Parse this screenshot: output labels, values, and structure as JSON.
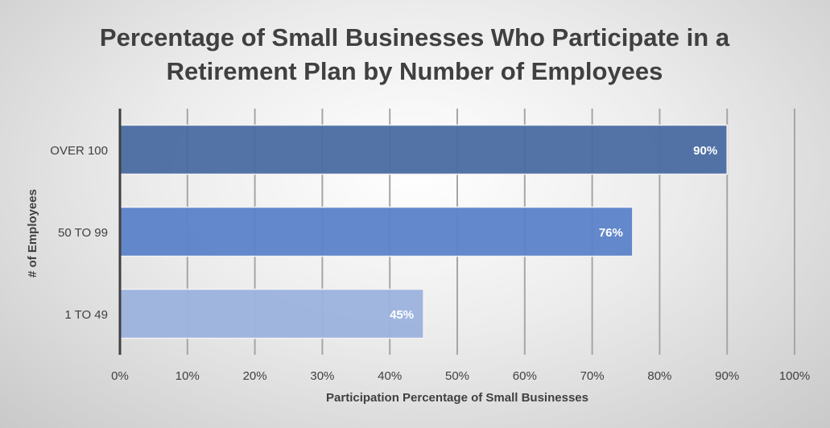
{
  "chart_data": {
    "type": "bar",
    "orientation": "horizontal",
    "title": "Percentage of Small Businesses Who Participate in a Retirement Plan by Number of Employees",
    "title_lines": [
      "Percentage of Small Businesses Who Participate in a",
      "Retirement Plan by Number of Employees"
    ],
    "xlabel": "Participation Percentage of Small Businesses",
    "ylabel": "# of Employees",
    "categories": [
      "OVER 100",
      "50 TO 99",
      "1 TO 49"
    ],
    "values": [
      90,
      76,
      45
    ],
    "data_labels": [
      "90%",
      "76%",
      "45%"
    ],
    "colors": [
      "#4a6ca2",
      "#5b82c8",
      "#9bb2dd"
    ],
    "xlim": [
      0,
      100
    ],
    "x_ticks": [
      "0%",
      "10%",
      "20%",
      "30%",
      "40%",
      "50%",
      "60%",
      "70%",
      "80%",
      "90%",
      "100%"
    ],
    "grid": true,
    "legend": "none"
  }
}
